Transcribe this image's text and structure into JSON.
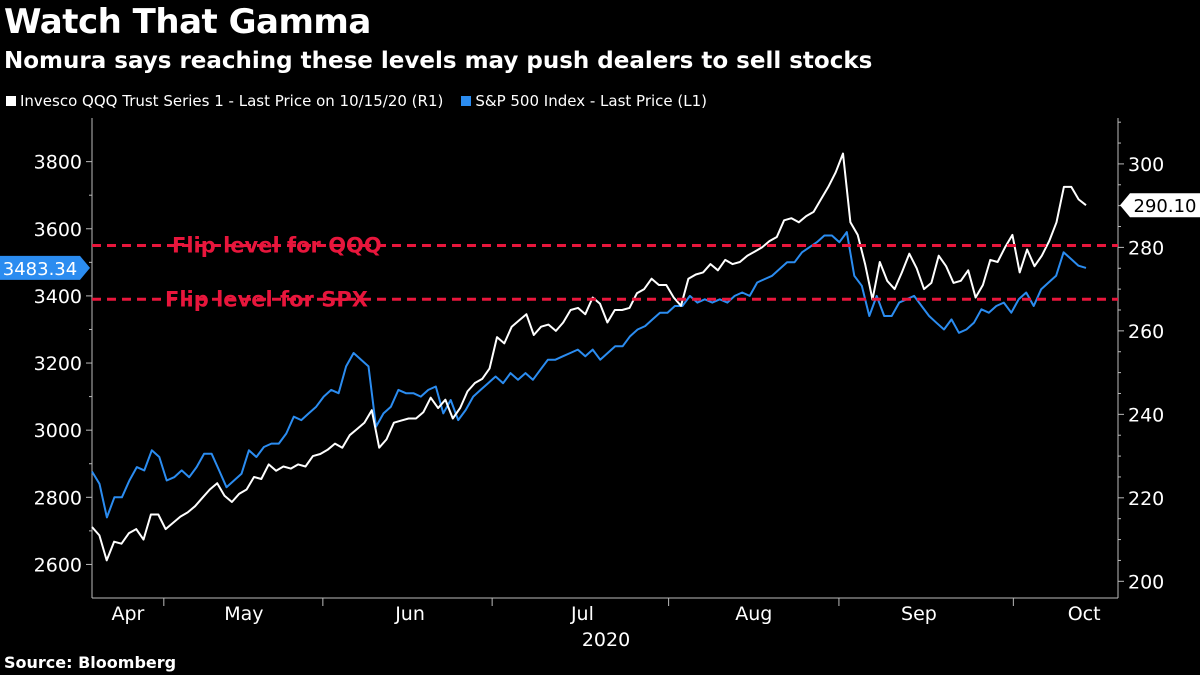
{
  "header": {
    "title": "Watch That Gamma",
    "subtitle": "Nomura says reaching these levels may push dealers to sell stocks"
  },
  "source": "Source: Bloomberg",
  "colors": {
    "qqq": "#ffffff",
    "spx": "#2b8cf0",
    "flip": "#e8163c",
    "background": "#000000"
  },
  "chart_data": {
    "type": "line",
    "title": "Watch That Gamma",
    "subtitle": "Nomura says reaching these levels may push dealers to sell stocks",
    "xlabel": "2020",
    "x_ticks": [
      "Apr",
      "May",
      "Jun",
      "Jul",
      "Aug",
      "Sep",
      "Oct"
    ],
    "left_axis": {
      "ylim": [
        2500,
        3930
      ],
      "ticks": [
        2600,
        2800,
        3000,
        3200,
        3400,
        3600,
        3800
      ]
    },
    "right_axis": {
      "ylim": [
        196,
        311
      ],
      "ticks": [
        200,
        220,
        240,
        260,
        280,
        300
      ]
    },
    "legend_position": "top-left",
    "series": [
      {
        "name": "Invesco QQQ Trust Series 1 - Last Price on 10/15/20 (R1)",
        "axis": "right",
        "last_value_label": "290.10",
        "values": [
          213,
          211,
          205,
          209.5,
          209,
          211.5,
          212.5,
          210,
          216,
          216,
          212.5,
          214,
          215.5,
          216.5,
          218,
          220,
          222,
          223.5,
          220.5,
          219,
          221,
          222,
          225,
          224.5,
          228,
          226.5,
          227.5,
          227,
          228,
          227.5,
          230,
          230.5,
          231.5,
          233,
          232,
          235,
          236.5,
          238,
          241,
          232,
          234,
          238,
          238.5,
          239,
          239,
          240.5,
          244,
          241.5,
          243.5,
          239,
          241.5,
          245.5,
          247.5,
          248.5,
          251,
          258.5,
          257,
          261,
          262.5,
          264,
          259,
          261,
          261.5,
          260,
          262,
          265,
          265.5,
          264,
          268,
          266.5,
          262,
          265,
          265,
          265.5,
          269,
          270,
          272.5,
          271,
          271,
          268,
          266,
          272.5,
          273.5,
          274,
          276,
          274.5,
          277,
          276,
          276.5,
          278,
          279,
          280,
          281.5,
          282.5,
          286.5,
          287,
          286,
          287.5,
          288.5,
          291.5,
          294.5,
          298,
          302.5,
          286,
          283,
          276,
          267.5,
          276.5,
          272,
          270,
          274,
          278.5,
          275,
          270,
          271.5,
          278,
          275.5,
          271.5,
          272,
          274.5,
          268,
          271,
          277,
          276.5,
          280,
          283,
          274,
          279.5,
          275.5,
          278,
          281.5,
          286,
          294.5,
          294.5,
          291.5,
          290.1
        ]
      },
      {
        "name": "S&P 500 Index - Last Price (L1)",
        "axis": "left",
        "last_value_label": "3483.34",
        "values": [
          2877,
          2840,
          2740,
          2800,
          2800,
          2850,
          2890,
          2880,
          2940,
          2920,
          2850,
          2860,
          2880,
          2860,
          2890,
          2930,
          2930,
          2880,
          2830,
          2850,
          2870,
          2940,
          2920,
          2950,
          2960,
          2960,
          2990,
          3040,
          3030,
          3050,
          3070,
          3100,
          3120,
          3110,
          3190,
          3230,
          3210,
          3190,
          3010,
          3050,
          3070,
          3120,
          3110,
          3110,
          3100,
          3120,
          3130,
          3050,
          3090,
          3030,
          3060,
          3100,
          3120,
          3140,
          3160,
          3140,
          3170,
          3150,
          3170,
          3150,
          3180,
          3210,
          3210,
          3220,
          3230,
          3240,
          3220,
          3240,
          3210,
          3230,
          3250,
          3250,
          3280,
          3300,
          3310,
          3330,
          3350,
          3350,
          3370,
          3370,
          3400,
          3380,
          3390,
          3380,
          3390,
          3380,
          3400,
          3410,
          3400,
          3440,
          3450,
          3460,
          3480,
          3500,
          3500,
          3530,
          3545,
          3560,
          3580,
          3580,
          3560,
          3590,
          3460,
          3430,
          3340,
          3400,
          3340,
          3340,
          3380,
          3390,
          3400,
          3370,
          3340,
          3320,
          3300,
          3330,
          3290,
          3300,
          3320,
          3360,
          3350,
          3370,
          3380,
          3350,
          3390,
          3410,
          3370,
          3420,
          3440,
          3460,
          3530,
          3510,
          3490,
          3483.34
        ]
      }
    ],
    "reference_lines": [
      {
        "label": "Flip level for QQQ",
        "axis": "left",
        "value": 3550
      },
      {
        "label": "Flip level for SPX",
        "axis": "left",
        "value": 3390
      }
    ]
  }
}
